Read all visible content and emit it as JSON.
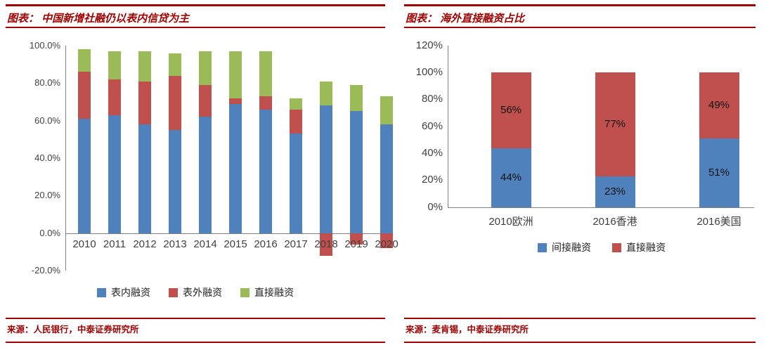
{
  "colors": {
    "dark_red": "#9e0000",
    "blue": "#4f81bd",
    "red": "#c0504d",
    "green": "#9bbb59",
    "axis": "#808080",
    "tick_text": "#404040",
    "data_label_text": "#111111"
  },
  "chart_data": [
    {
      "type": "bar",
      "stacked": true,
      "title": "图表： 中国新增社融仍以表内信贷为主",
      "source": "来源：人民银行，中泰证券研究所",
      "categories": [
        "2010",
        "2011",
        "2012",
        "2013",
        "2014",
        "2015",
        "2016",
        "2017",
        "2018",
        "2019",
        "2020"
      ],
      "series": [
        {
          "name": "表内融资",
          "color_key": "blue",
          "values": [
            61,
            63,
            58,
            55,
            62,
            69,
            66,
            53,
            68,
            65,
            58
          ]
        },
        {
          "name": "表外融资",
          "color_key": "red",
          "values": [
            25,
            19,
            23,
            29,
            17,
            3,
            7,
            13,
            -12,
            -6,
            -8
          ]
        },
        {
          "name": "直接融资",
          "color_key": "green",
          "values": [
            12,
            15,
            16,
            12,
            18,
            25,
            24,
            6,
            13,
            14,
            15
          ]
        }
      ],
      "ylim": [
        -20,
        100
      ],
      "yticks": [
        "100.0%",
        "80.0%",
        "60.0%",
        "40.0%",
        "20.0%",
        "0.0%",
        "-20.0%"
      ],
      "legend_position": "bottom",
      "grid": false,
      "data_labels": false
    },
    {
      "type": "bar",
      "stacked": true,
      "title": "图表： 海外直接融资占比",
      "source": "来源：麦肯锡，中泰证券研究所",
      "categories": [
        "2010欧洲",
        "2016香港",
        "2016美国"
      ],
      "series": [
        {
          "name": "间接融资",
          "color_key": "blue",
          "values": [
            44,
            23,
            51
          ]
        },
        {
          "name": "直接融资",
          "color_key": "red",
          "values": [
            56,
            77,
            49
          ]
        }
      ],
      "ylim": [
        0,
        120
      ],
      "yticks": [
        "120%",
        "100%",
        "80%",
        "60%",
        "40%",
        "20%",
        "0%"
      ],
      "legend_position": "bottom",
      "grid": false,
      "data_labels": true
    }
  ]
}
